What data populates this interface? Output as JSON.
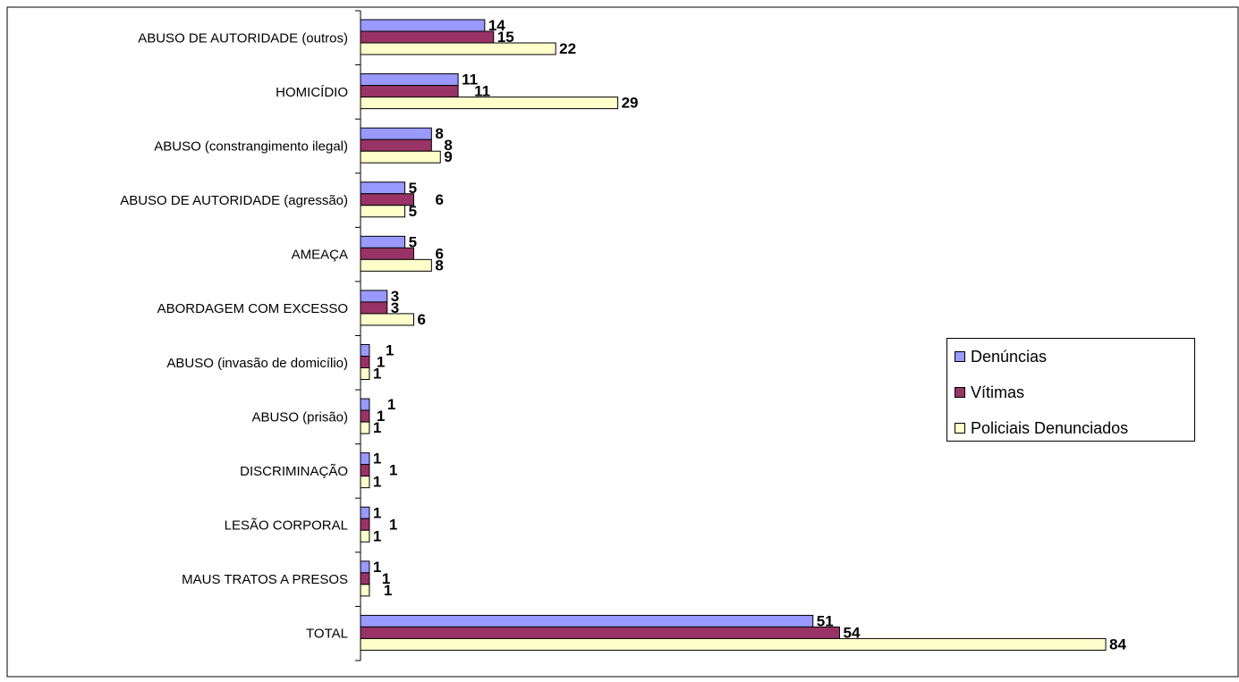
{
  "chart_data": {
    "type": "bar",
    "orientation": "horizontal",
    "categories": [
      "ABUSO DE AUTORIDADE (outros)",
      "HOMICÍDIO",
      "ABUSO (constrangimento ilegal)",
      "ABUSO DE AUTORIDADE (agressão)",
      "AMEAÇA",
      "ABORDAGEM COM EXCESSO",
      "ABUSO (invasão de domicílio)",
      "ABUSO (prisão)",
      "DISCRIMINAÇÃO",
      "LESÃO CORPORAL",
      "MAUS TRATOS A PRESOS",
      "TOTAL"
    ],
    "series": [
      {
        "name": "Denúncias",
        "color": "#9999ff",
        "values": [
          14,
          11,
          8,
          5,
          5,
          3,
          1,
          1,
          1,
          1,
          1,
          51
        ]
      },
      {
        "name": "Vítimas",
        "color": "#993366",
        "values": [
          15,
          11,
          8,
          6,
          6,
          3,
          1,
          1,
          1,
          1,
          1,
          54
        ]
      },
      {
        "name": "Policiais Denunciados",
        "color": "#ffffcc",
        "values": [
          22,
          29,
          9,
          5,
          8,
          6,
          1,
          1,
          1,
          1,
          1,
          84
        ]
      }
    ],
    "xlim": [
      0,
      84
    ],
    "grid": false,
    "legend": "right",
    "data_labels": true
  }
}
